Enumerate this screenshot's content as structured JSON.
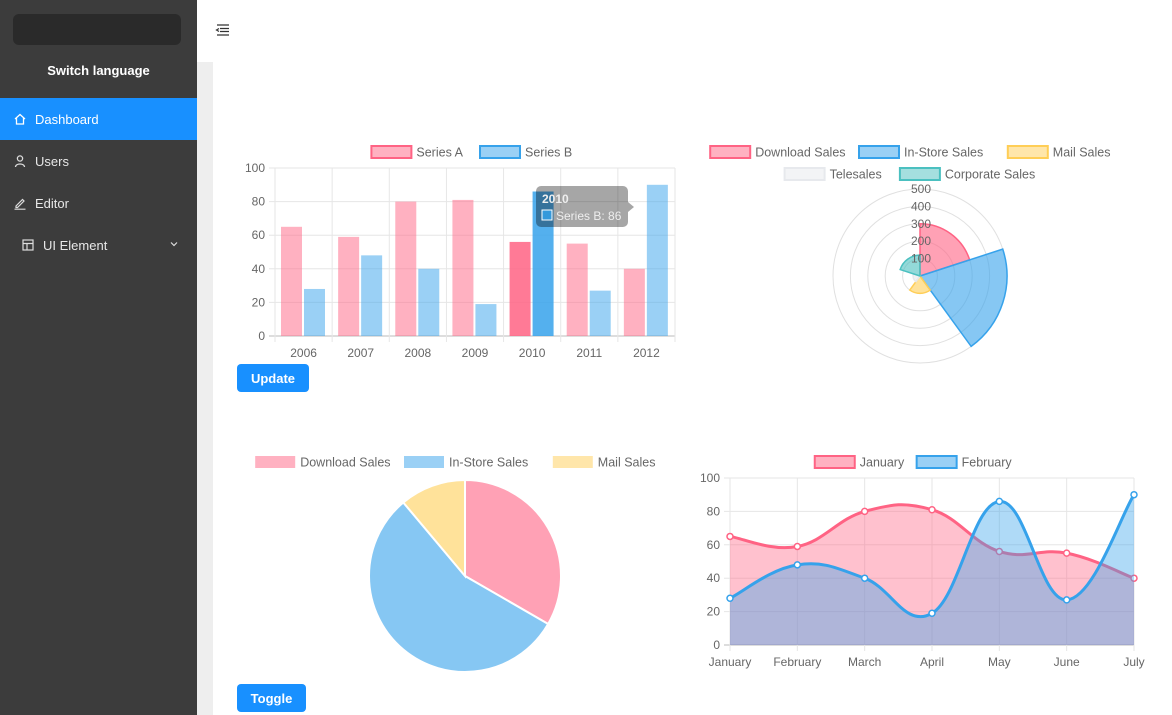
{
  "sidebar": {
    "switch_language": "Switch language",
    "items": [
      {
        "label": "Dashboard",
        "icon": "home-icon"
      },
      {
        "label": "Users",
        "icon": "user-icon"
      },
      {
        "label": "Editor",
        "icon": "edit-icon"
      },
      {
        "label": "UI Element",
        "icon": "layout-icon"
      }
    ]
  },
  "buttons": {
    "update": "Update",
    "toggle": "Toggle"
  },
  "chart_data": [
    {
      "type": "bar",
      "categories": [
        "2006",
        "2007",
        "2008",
        "2009",
        "2010",
        "2011",
        "2012"
      ],
      "series": [
        {
          "name": "Series A",
          "values": [
            65,
            59,
            80,
            81,
            56,
            55,
            40
          ],
          "color": "#ff6384"
        },
        {
          "name": "Series B",
          "values": [
            28,
            48,
            40,
            19,
            86,
            27,
            90
          ],
          "color": "#36a2eb"
        }
      ],
      "ylim": [
        0,
        100
      ],
      "yticks": [
        0,
        20,
        40,
        60,
        80,
        100
      ],
      "tooltip": {
        "title": "2010",
        "label": "Series B: 86"
      }
    },
    {
      "type": "polarArea",
      "labels": [
        "Download Sales",
        "In-Store Sales",
        "Mail Sales",
        "Telesales",
        "Corporate Sales"
      ],
      "values": [
        300,
        500,
        100,
        40,
        120
      ],
      "colors": [
        "#ff6384",
        "#36a2eb",
        "#ffce56",
        "#e7e9ed",
        "#4bc0c0"
      ],
      "rticks": [
        100,
        200,
        300,
        400,
        500
      ],
      "rmax": 500
    },
    {
      "type": "pie",
      "labels": [
        "Download Sales",
        "In-Store Sales",
        "Mail Sales"
      ],
      "values": [
        300,
        500,
        100
      ],
      "colors": [
        "#ff6384",
        "#36a2eb",
        "#ffce56"
      ]
    },
    {
      "type": "line",
      "categories": [
        "January",
        "February",
        "March",
        "April",
        "May",
        "June",
        "July"
      ],
      "series": [
        {
          "name": "January",
          "values": [
            65,
            59,
            80,
            81,
            56,
            55,
            40
          ],
          "color": "#ff6384"
        },
        {
          "name": "February",
          "values": [
            28,
            48,
            40,
            19,
            86,
            27,
            90
          ],
          "color": "#36a2eb"
        }
      ],
      "ylim": [
        0,
        100
      ],
      "yticks": [
        0,
        20,
        40,
        60,
        80,
        100
      ]
    }
  ]
}
